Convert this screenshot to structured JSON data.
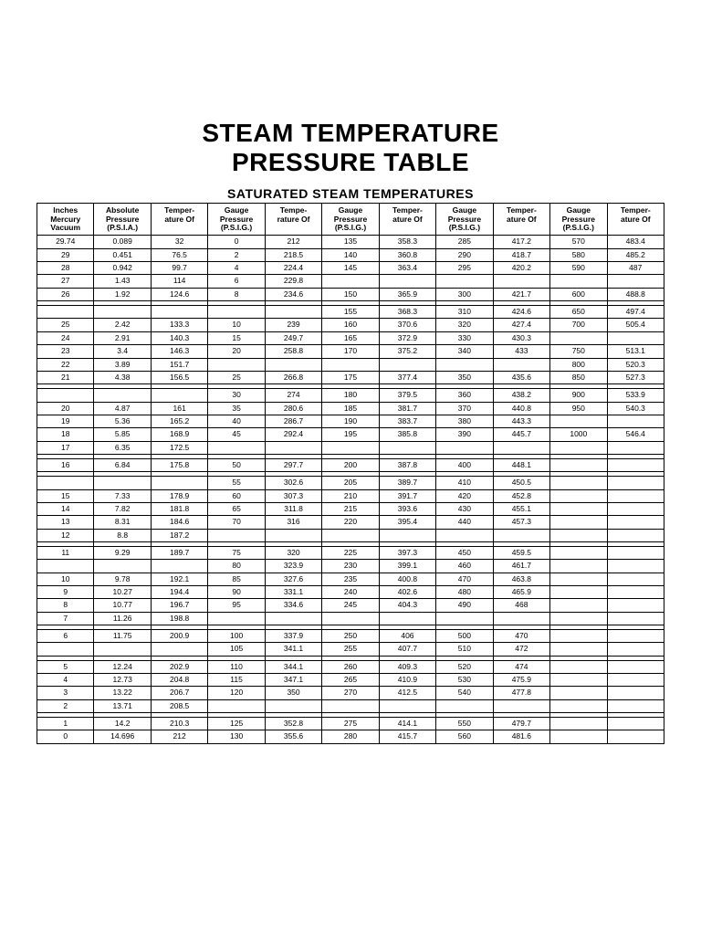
{
  "title_line1": "STEAM TEMPERATURE",
  "title_line2": "PRESSURE TABLE",
  "subtitle": "SATURATED STEAM TEMPERATURES",
  "table": {
    "columns": [
      "Inches Mercury Vacuum",
      "Absolute Pressure (P.S.I.A.)",
      "Temper- ature Of",
      "Gauge Pressure (P.S.I.G.)",
      "Tempe- rature Of",
      "Gauge Pressure (P.S.I.G.)",
      "Temper- ature Of",
      "Gauge Pressure (P.S.I.G.)",
      "Temper- ature Of",
      "Gauge Pressure (P.S.I.G.)",
      "Temper- ature Of"
    ],
    "rows": [
      [
        "29.74",
        "0.089",
        "32",
        "0",
        "212",
        "135",
        "358.3",
        "285",
        "417.2",
        "570",
        "483.4"
      ],
      [
        "29",
        "0.451",
        "76.5",
        "2",
        "218.5",
        "140",
        "360.8",
        "290",
        "418.7",
        "580",
        "485.2"
      ],
      [
        "28",
        "0.942",
        "99.7",
        "4",
        "224.4",
        "145",
        "363.4",
        "295",
        "420.2",
        "590",
        "487"
      ],
      [
        "27",
        "1.43",
        "114",
        "6",
        "229.8",
        "",
        "",
        "",
        "",
        "",
        ""
      ],
      [
        "26",
        "1.92",
        "124.6",
        "8",
        "234.6",
        "150",
        "365.9",
        "300",
        "421.7",
        "600",
        "488.8"
      ],
      [
        "",
        "",
        "",
        "",
        "",
        "155",
        "368.3",
        "310",
        "424.6",
        "650",
        "497.4"
      ],
      [
        "25",
        "2.42",
        "133.3",
        "10",
        "239",
        "160",
        "370.6",
        "320",
        "427.4",
        "700",
        "505.4"
      ],
      [
        "24",
        "2.91",
        "140.3",
        "15",
        "249.7",
        "165",
        "372.9",
        "330",
        "430.3",
        "",
        ""
      ],
      [
        "23",
        "3.4",
        "146.3",
        "20",
        "258.8",
        "170",
        "375.2",
        "340",
        "433",
        "750",
        "513.1"
      ],
      [
        "22",
        "3.89",
        "151.7",
        "",
        "",
        "",
        "",
        "",
        "",
        "800",
        "520.3"
      ],
      [
        "21",
        "4.38",
        "156.5",
        "25",
        "266.8",
        "175",
        "377.4",
        "350",
        "435.6",
        "850",
        "527.3"
      ],
      [
        "",
        "",
        "",
        "30",
        "274",
        "180",
        "379.5",
        "360",
        "438.2",
        "900",
        "533.9"
      ],
      [
        "20",
        "4.87",
        "161",
        "35",
        "280.6",
        "185",
        "381.7",
        "370",
        "440.8",
        "950",
        "540.3"
      ],
      [
        "19",
        "5.36",
        "165.2",
        "40",
        "286.7",
        "190",
        "383.7",
        "380",
        "443.3",
        "",
        ""
      ],
      [
        "18",
        "5.85",
        "168.9",
        "45",
        "292.4",
        "195",
        "385.8",
        "390",
        "445.7",
        "1000",
        "546.4"
      ],
      [
        "17",
        "6.35",
        "172.5",
        "",
        "",
        "",
        "",
        "",
        "",
        "",
        ""
      ],
      [
        "16",
        "6.84",
        "175.8",
        "50",
        "297.7",
        "200",
        "387.8",
        "400",
        "448.1",
        "",
        ""
      ],
      [
        "",
        "",
        "",
        "55",
        "302.6",
        "205",
        "389.7",
        "410",
        "450.5",
        "",
        ""
      ],
      [
        "15",
        "7.33",
        "178.9",
        "60",
        "307.3",
        "210",
        "391.7",
        "420",
        "452.8",
        "",
        ""
      ],
      [
        "14",
        "7.82",
        "181.8",
        "65",
        "311.8",
        "215",
        "393.6",
        "430",
        "455.1",
        "",
        ""
      ],
      [
        "13",
        "8.31",
        "184.6",
        "70",
        "316",
        "220",
        "395.4",
        "440",
        "457.3",
        "",
        ""
      ],
      [
        "12",
        "8.8",
        "187.2",
        "",
        "",
        "",
        "",
        "",
        "",
        "",
        ""
      ],
      [
        "11",
        "9.29",
        "189.7",
        "75",
        "320",
        "225",
        "397.3",
        "450",
        "459.5",
        "",
        ""
      ],
      [
        "",
        "",
        "",
        "80",
        "323.9",
        "230",
        "399.1",
        "460",
        "461.7",
        "",
        ""
      ],
      [
        "10",
        "9.78",
        "192.1",
        "85",
        "327.6",
        "235",
        "400.8",
        "470",
        "463.8",
        "",
        ""
      ],
      [
        "9",
        "10.27",
        "194.4",
        "90",
        "331.1",
        "240",
        "402.6",
        "480",
        "465.9",
        "",
        ""
      ],
      [
        "8",
        "10.77",
        "196.7",
        "95",
        "334.6",
        "245",
        "404.3",
        "490",
        "468",
        "",
        ""
      ],
      [
        "7",
        "11.26",
        "198.8",
        "",
        "",
        "",
        "",
        "",
        "",
        "",
        ""
      ],
      [
        "6",
        "11.75",
        "200.9",
        "100",
        "337.9",
        "250",
        "406",
        "500",
        "470",
        "",
        ""
      ],
      [
        "",
        "",
        "",
        "105",
        "341.1",
        "255",
        "407.7",
        "510",
        "472",
        "",
        ""
      ],
      [
        "5",
        "12.24",
        "202.9",
        "110",
        "344.1",
        "260",
        "409.3",
        "520",
        "474",
        "",
        ""
      ],
      [
        "4",
        "12.73",
        "204.8",
        "115",
        "347.1",
        "265",
        "410.9",
        "530",
        "475.9",
        "",
        ""
      ],
      [
        "3",
        "13.22",
        "206.7",
        "120",
        "350",
        "270",
        "412.5",
        "540",
        "477.8",
        "",
        ""
      ],
      [
        "2",
        "13.71",
        "208.5",
        "",
        "",
        "",
        "",
        "",
        "",
        "",
        ""
      ],
      [
        "1",
        "14.2",
        "210.3",
        "125",
        "352.8",
        "275",
        "414.1",
        "550",
        "479.7",
        "",
        ""
      ],
      [
        "0",
        "14.696",
        "212",
        "130",
        "355.6",
        "280",
        "415.7",
        "560",
        "481.6",
        "",
        ""
      ]
    ],
    "gap_after": [
      4,
      10,
      15,
      16,
      21,
      27,
      29,
      33
    ],
    "background_color": "#ffffff",
    "border_color": "#000000",
    "text_color": "#000000",
    "header_fontsize": 8.5,
    "cell_fontsize": 8.5,
    "num_columns": 11
  }
}
